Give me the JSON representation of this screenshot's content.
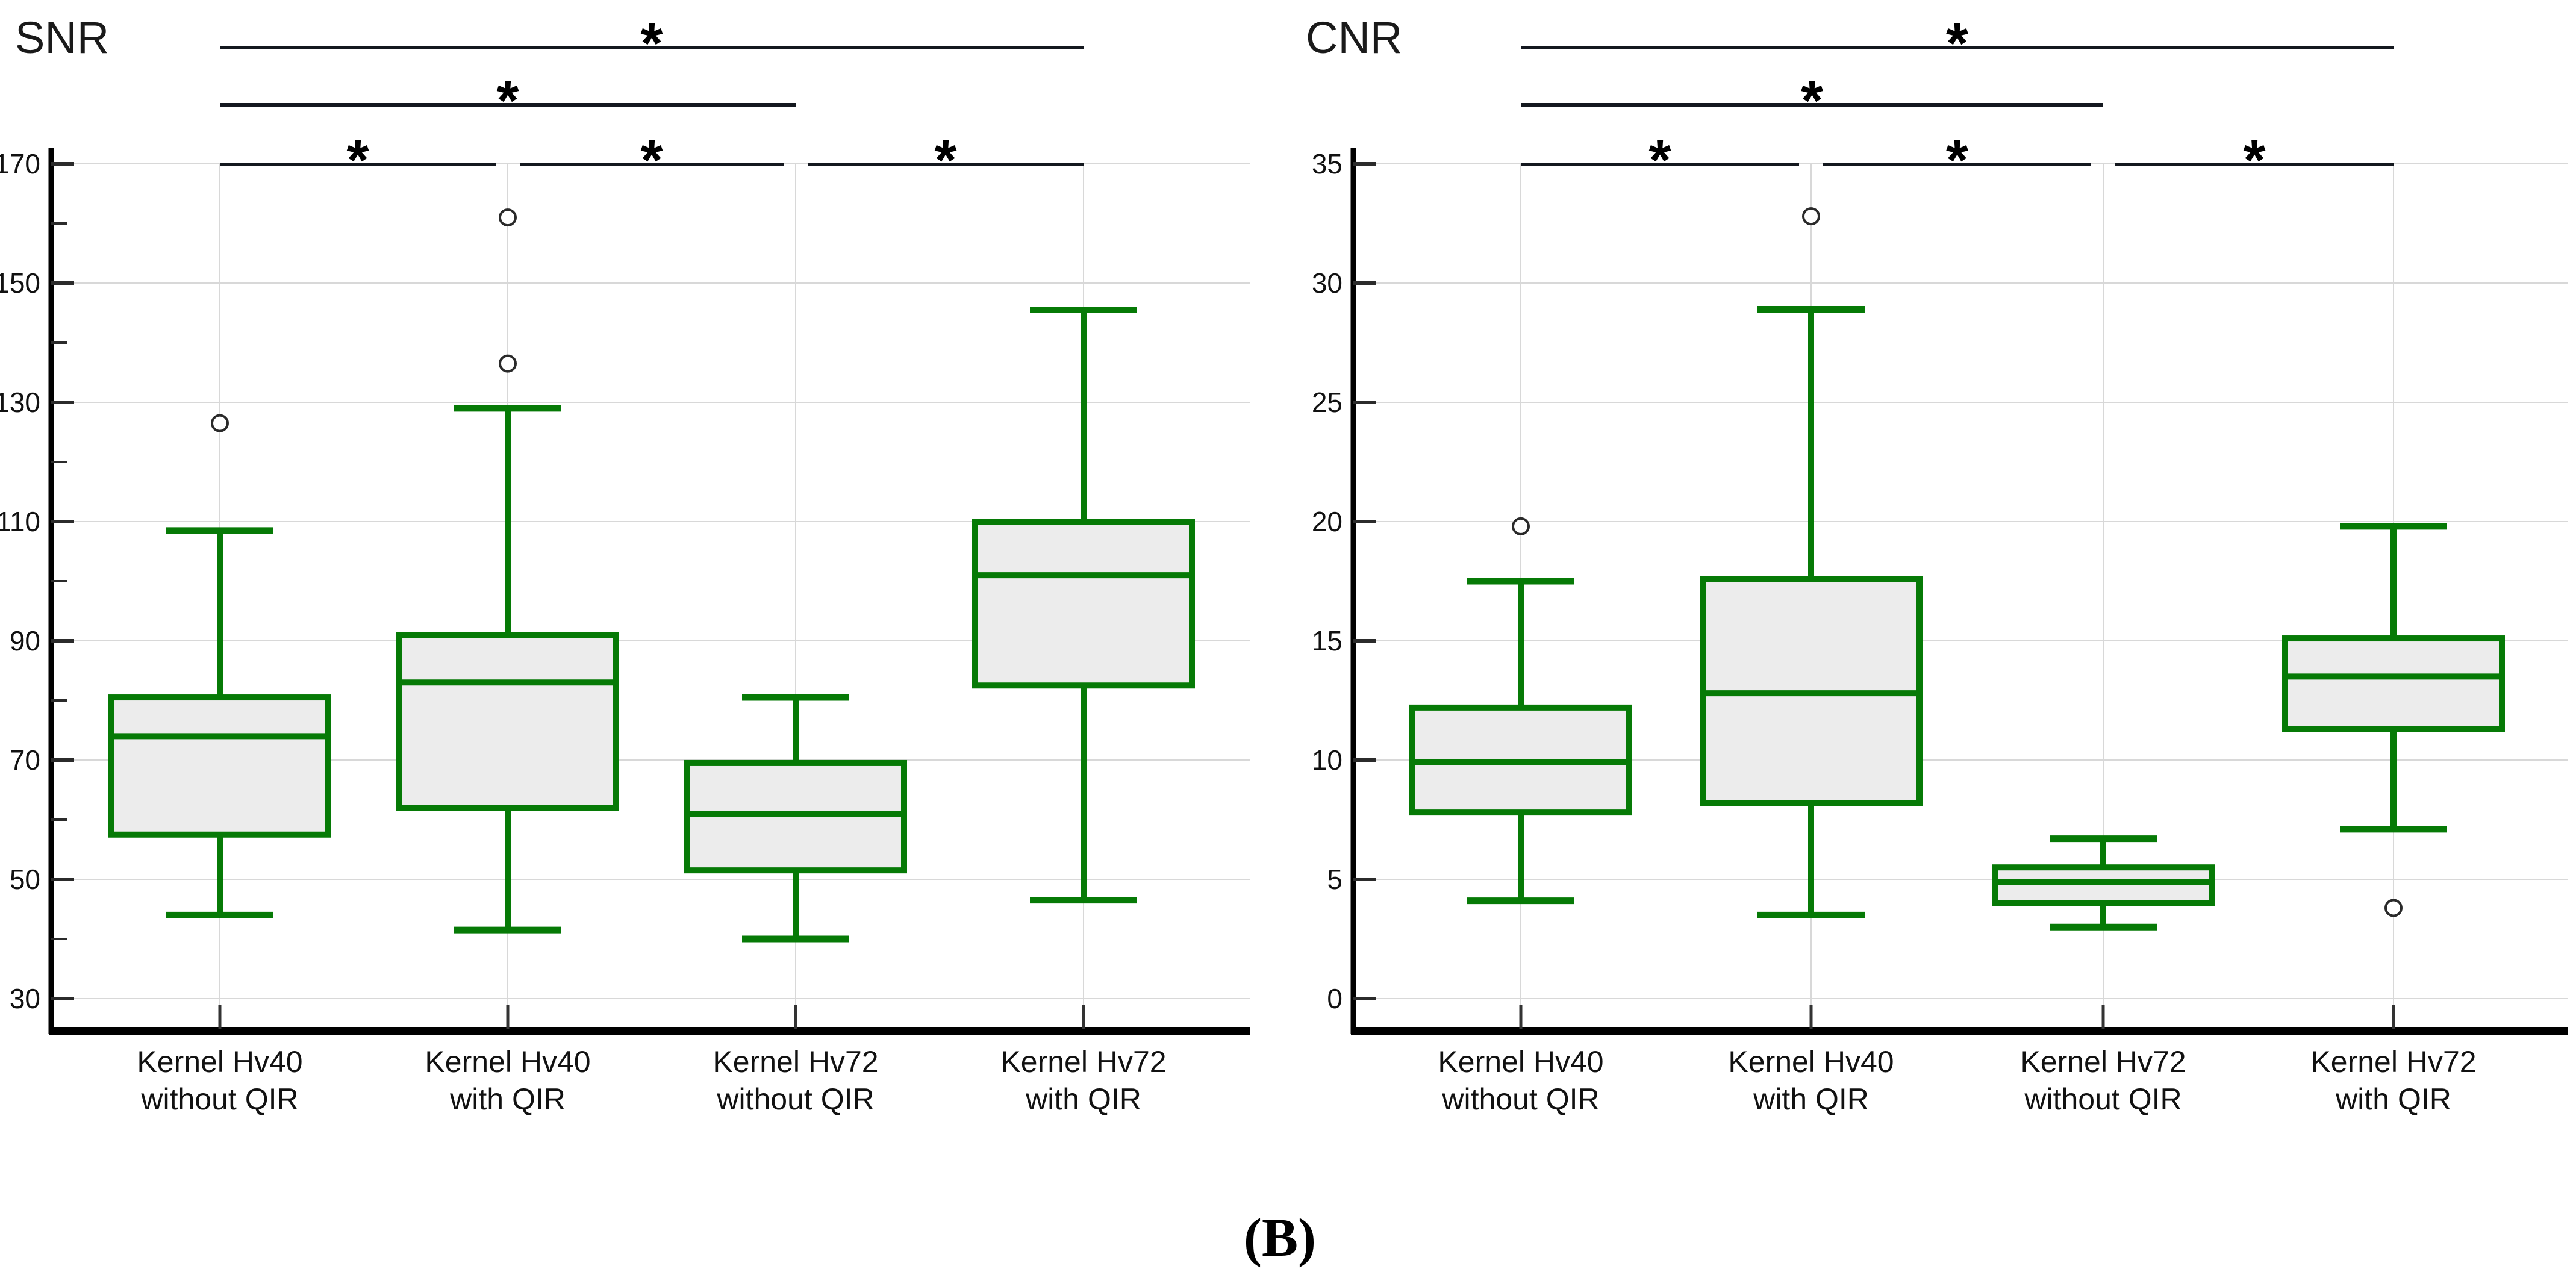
{
  "page": {
    "caption": "(B)"
  },
  "colors": {
    "box_stroke_green": "#067a06",
    "box_fill": "#ececec",
    "gridline": "#d8d8d8",
    "axis": "#000000",
    "bracket": "#14181f",
    "text": "#111111",
    "outlier_stroke": "#2a2a2a",
    "tick": "#2b2b2b"
  },
  "chart_data": [
    {
      "type": "box",
      "title": "SNR",
      "ylim": [
        30,
        170
      ],
      "grid": true,
      "yticks": [
        30,
        50,
        70,
        90,
        110,
        130,
        150,
        170
      ],
      "ytick_labels": [
        "30",
        "50",
        "70",
        "90",
        "110",
        "130",
        "150",
        "170"
      ],
      "yticks_minor": [
        40,
        60,
        80,
        100,
        120,
        140,
        160
      ],
      "categories": [
        [
          "Kernel Hv40",
          "without QIR"
        ],
        [
          "Kernel Hv40",
          "with QIR"
        ],
        [
          "Kernel Hv72",
          "without QIR"
        ],
        [
          "Kernel Hv72",
          "with QIR"
        ]
      ],
      "series": [
        {
          "name": "Kernel Hv40 without QIR",
          "whisker_low": 44,
          "q1": 57.5,
          "median": 74,
          "q3": 80.5,
          "whisker_high": 108.5,
          "outliers": [
            126.5
          ]
        },
        {
          "name": "Kernel Hv40 with QIR",
          "whisker_low": 41.5,
          "q1": 62,
          "median": 83,
          "q3": 91,
          "whisker_high": 129,
          "outliers": [
            136.5,
            161
          ]
        },
        {
          "name": "Kernel Hv72 without QIR",
          "whisker_low": 40,
          "q1": 51.5,
          "median": 61,
          "q3": 69.5,
          "whisker_high": 80.5,
          "outliers": []
        },
        {
          "name": "Kernel Hv72 with QIR",
          "whisker_low": 46.5,
          "q1": 82.5,
          "median": 101,
          "q3": 110,
          "whisker_high": 145.5,
          "outliers": []
        }
      ],
      "significance_brackets": [
        {
          "groups": [
            1,
            4
          ],
          "row": 1,
          "label": "*"
        },
        {
          "groups": [
            1,
            3
          ],
          "row": 2,
          "label": "*"
        },
        {
          "groups": [
            1,
            2
          ],
          "row": 3,
          "label": "*"
        },
        {
          "groups": [
            2,
            3
          ],
          "row": 3,
          "label": "*"
        },
        {
          "groups": [
            3,
            4
          ],
          "row": 3,
          "label": "*"
        }
      ]
    },
    {
      "type": "box",
      "title": "CNR",
      "ylim": [
        0,
        35
      ],
      "grid": true,
      "yticks": [
        0,
        5,
        10,
        15,
        20,
        25,
        30,
        35
      ],
      "ytick_labels": [
        "0",
        "5",
        "10",
        "15",
        "20",
        "25",
        "30",
        "35"
      ],
      "yticks_minor": [],
      "categories": [
        [
          "Kernel Hv40",
          "without QIR"
        ],
        [
          "Kernel Hv40",
          "with QIR"
        ],
        [
          "Kernel Hv72",
          "without QIR"
        ],
        [
          "Kernel Hv72",
          "with QIR"
        ]
      ],
      "series": [
        {
          "name": "Kernel Hv40 without QIR",
          "whisker_low": 4.1,
          "q1": 7.8,
          "median": 9.9,
          "q3": 12.2,
          "whisker_high": 17.5,
          "outliers": [
            19.8
          ]
        },
        {
          "name": "Kernel Hv40 with QIR",
          "whisker_low": 3.5,
          "q1": 8.2,
          "median": 12.8,
          "q3": 17.6,
          "whisker_high": 28.9,
          "outliers": [
            32.8
          ]
        },
        {
          "name": "Kernel Hv72 without QIR",
          "whisker_low": 3.0,
          "q1": 4.0,
          "median": 4.9,
          "q3": 5.5,
          "whisker_high": 6.7,
          "outliers": []
        },
        {
          "name": "Kernel Hv72 with QIR",
          "whisker_low": 7.1,
          "q1": 11.3,
          "median": 13.5,
          "q3": 15.1,
          "whisker_high": 19.8,
          "outliers": [
            3.8
          ]
        }
      ],
      "significance_brackets": [
        {
          "groups": [
            1,
            4
          ],
          "row": 1,
          "label": "*"
        },
        {
          "groups": [
            1,
            3
          ],
          "row": 2,
          "label": "*"
        },
        {
          "groups": [
            1,
            2
          ],
          "row": 3,
          "label": "*"
        },
        {
          "groups": [
            2,
            3
          ],
          "row": 3,
          "label": "*"
        },
        {
          "groups": [
            3,
            4
          ],
          "row": 3,
          "label": "*"
        }
      ]
    }
  ]
}
